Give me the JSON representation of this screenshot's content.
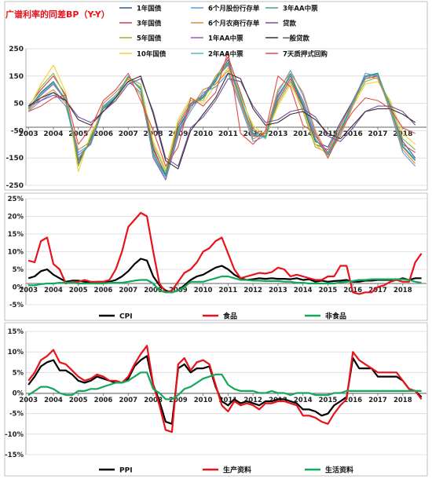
{
  "chart_data": [
    {
      "type": "line",
      "title": "广谱利率的同差BP（Y-Y）",
      "title_color": "#e8131a",
      "x_tick_labels": [
        "2003",
        "2004",
        "2005",
        "2006",
        "2007",
        "2008",
        "2009",
        "2010",
        "2011",
        "2012",
        "2013",
        "2014",
        "2015",
        "2016",
        "2017",
        "2018"
      ],
      "y_tick_labels": [
        "250",
        "150",
        "50",
        "-50",
        "-150",
        "-250"
      ],
      "ylim": [
        -250,
        250
      ],
      "x": [
        2003.0,
        2003.5,
        2004.0,
        2004.5,
        2005.0,
        2005.5,
        2006.0,
        2006.5,
        2007.0,
        2007.5,
        2008.0,
        2008.5,
        2009.0,
        2009.5,
        2010.0,
        2010.5,
        2011.0,
        2011.5,
        2012.0,
        2012.5,
        2013.0,
        2013.5,
        2014.0,
        2014.5,
        2015.0,
        2015.5,
        2016.0,
        2016.5,
        2017.0,
        2017.5,
        2018.0,
        2018.5
      ],
      "legend_position": "top",
      "series": [
        {
          "name": "1年国债",
          "color": "#2e5e8a",
          "values": [
            30,
            90,
            130,
            60,
            -170,
            -80,
            40,
            70,
            150,
            100,
            -120,
            -210,
            -40,
            40,
            70,
            130,
            210,
            60,
            -60,
            -60,
            70,
            150,
            40,
            -90,
            -110,
            -20,
            60,
            150,
            160,
            30,
            -90,
            -150
          ]
        },
        {
          "name": "3年国债",
          "color": "#c9414b",
          "values": [
            40,
            100,
            150,
            80,
            -160,
            -90,
            30,
            60,
            140,
            110,
            -110,
            -220,
            -30,
            50,
            80,
            140,
            220,
            90,
            -50,
            -70,
            60,
            140,
            30,
            -100,
            -120,
            -30,
            60,
            140,
            150,
            40,
            -100,
            -130
          ]
        },
        {
          "name": "5年国债",
          "color": "#8fb24a",
          "values": [
            35,
            110,
            160,
            70,
            -180,
            -70,
            30,
            70,
            145,
            120,
            -100,
            -200,
            -20,
            60,
            60,
            150,
            200,
            80,
            -40,
            -80,
            50,
            130,
            20,
            -110,
            -130,
            -40,
            50,
            130,
            145,
            50,
            -80,
            -120
          ]
        },
        {
          "name": "10年国债",
          "color": "#f2d230",
          "values": [
            30,
            120,
            190,
            90,
            -200,
            -60,
            20,
            60,
            140,
            110,
            -90,
            -190,
            -10,
            70,
            50,
            120,
            180,
            70,
            -30,
            -70,
            40,
            120,
            30,
            -100,
            -140,
            -50,
            40,
            120,
            130,
            60,
            -60,
            -100
          ]
        },
        {
          "name": "6个月股份行存单",
          "color": "#5b9bd5",
          "values": [
            20,
            60,
            90,
            40,
            -130,
            -100,
            40,
            80,
            130,
            90,
            -140,
            -230,
            -60,
            20,
            90,
            110,
            160,
            40,
            -90,
            -70,
            90,
            170,
            80,
            -60,
            -150,
            -60,
            50,
            160,
            150,
            20,
            -130,
            -180
          ]
        },
        {
          "name": "6个月农商行存单",
          "color": "#d68b3a",
          "values": [
            25,
            70,
            100,
            50,
            -120,
            -90,
            50,
            90,
            140,
            80,
            -130,
            -220,
            -50,
            30,
            100,
            120,
            170,
            50,
            -80,
            -60,
            100,
            160,
            90,
            -50,
            -140,
            -70,
            40,
            150,
            140,
            30,
            -120,
            -170
          ]
        },
        {
          "name": "1年AA中票",
          "color": "#9b59b6",
          "values": [
            30,
            80,
            120,
            60,
            -140,
            -100,
            30,
            70,
            150,
            100,
            -150,
            -230,
            -70,
            40,
            80,
            140,
            190,
            60,
            -70,
            -70,
            80,
            150,
            60,
            -70,
            -130,
            -50,
            60,
            150,
            150,
            40,
            -110,
            -160
          ]
        },
        {
          "name": "2年AA中票",
          "color": "#4bbcd6",
          "values": [
            30,
            85,
            125,
            65,
            -150,
            -95,
            35,
            75,
            150,
            105,
            -140,
            -220,
            -60,
            45,
            75,
            135,
            195,
            65,
            -65,
            -75,
            70,
            155,
            50,
            -80,
            -135,
            -45,
            55,
            145,
            155,
            35,
            -105,
            -155
          ]
        },
        {
          "name": "3年AA中票",
          "color": "#3aa87f",
          "values": [
            32,
            88,
            128,
            62,
            -155,
            -92,
            32,
            72,
            148,
            102,
            -135,
            -215,
            -55,
            48,
            72,
            138,
            198,
            68,
            -62,
            -72,
            72,
            158,
            48,
            -82,
            -138,
            -48,
            52,
            148,
            158,
            38,
            -108,
            -158
          ]
        },
        {
          "name": "贷款",
          "color": "#7a4a9e",
          "values": [
            40,
            60,
            80,
            60,
            0,
            -20,
            20,
            60,
            120,
            140,
            20,
            -150,
            -180,
            -40,
            0,
            60,
            140,
            130,
            40,
            -20,
            -10,
            20,
            30,
            0,
            -70,
            -90,
            -40,
            20,
            40,
            40,
            20,
            -30
          ]
        },
        {
          "name": "一般贷款",
          "color": "#333333",
          "values": [
            40,
            70,
            90,
            60,
            -10,
            -30,
            20,
            70,
            130,
            150,
            10,
            -160,
            -190,
            -50,
            10,
            70,
            160,
            140,
            30,
            -30,
            -20,
            10,
            20,
            -10,
            -60,
            -80,
            -30,
            20,
            30,
            30,
            10,
            -20
          ]
        },
        {
          "name": "7天质押式回购",
          "color": "#e04b4b",
          "values": [
            20,
            40,
            70,
            80,
            -100,
            -40,
            60,
            100,
            160,
            60,
            -50,
            -180,
            -110,
            70,
            40,
            90,
            240,
            -60,
            -100,
            -50,
            150,
            110,
            -30,
            -60,
            -150,
            -50,
            20,
            70,
            60,
            30,
            -40,
            -60
          ]
        }
      ]
    },
    {
      "type": "line",
      "x_tick_labels": [
        "2003",
        "2004",
        "2005",
        "2006",
        "2007",
        "2008",
        "2009",
        "2010",
        "2011",
        "2012",
        "2013",
        "2014",
        "2015",
        "2016",
        "2017",
        "2018"
      ],
      "y_tick_labels": [
        "25%",
        "20%",
        "15%",
        "10%",
        "5%",
        "0%",
        "-5%"
      ],
      "ylim": [
        -5,
        25
      ],
      "x": [
        2003.0,
        2003.25,
        2003.5,
        2003.75,
        2004.0,
        2004.25,
        2004.5,
        2004.75,
        2005.0,
        2005.25,
        2005.5,
        2005.75,
        2006.0,
        2006.25,
        2006.5,
        2006.75,
        2007.0,
        2007.25,
        2007.5,
        2007.75,
        2008.0,
        2008.25,
        2008.5,
        2008.75,
        2009.0,
        2009.25,
        2009.5,
        2009.75,
        2010.0,
        2010.25,
        2010.5,
        2010.75,
        2011.0,
        2011.25,
        2011.5,
        2011.75,
        2012.0,
        2012.25,
        2012.5,
        2012.75,
        2013.0,
        2013.25,
        2013.5,
        2013.75,
        2014.0,
        2014.25,
        2014.5,
        2014.75,
        2015.0,
        2015.25,
        2015.5,
        2015.75,
        2016.0,
        2016.25,
        2016.5,
        2016.75,
        2017.0,
        2017.25,
        2017.5,
        2017.75,
        2018.0,
        2018.25,
        2018.5,
        2018.75
      ],
      "legend_position": "bottom",
      "series": [
        {
          "name": "CPI",
          "color": "#000000",
          "values": [
            2.5,
            3,
            4.5,
            5,
            3.5,
            2.5,
            1.5,
            1.8,
            1.8,
            1.5,
            1.2,
            1.5,
            1.5,
            1.5,
            2,
            3,
            4.5,
            6.5,
            8,
            7.5,
            3,
            0.5,
            -1,
            -1.5,
            -1,
            0.5,
            2,
            3,
            3.5,
            4.5,
            5.5,
            6,
            5,
            3.5,
            2.5,
            2,
            2.2,
            2.5,
            2.3,
            2.5,
            2.3,
            2.3,
            2.2,
            2.5,
            2,
            2.2,
            1.5,
            1.8,
            1.5,
            1.7,
            1.8,
            2,
            1.5,
            1.5,
            1.8,
            1.8,
            2,
            2,
            2,
            2,
            2.5,
            2,
            2.5,
            2.5
          ]
        },
        {
          "name": "食品",
          "color": "#e8131a",
          "values": [
            7.5,
            7,
            13,
            14,
            6.5,
            5,
            1,
            1.5,
            1.5,
            2,
            1.5,
            1.5,
            1.5,
            2,
            5,
            10,
            17,
            19,
            21,
            20,
            10,
            1,
            -1.5,
            -1,
            1.5,
            4,
            5,
            7,
            10,
            11,
            13,
            14,
            9.5,
            5,
            2.5,
            3,
            3.5,
            4,
            3.8,
            4.2,
            5.5,
            5,
            3,
            3.5,
            3,
            2.5,
            2,
            2,
            3,
            3,
            6,
            6,
            -1.5,
            -2,
            -1.5,
            -1.5,
            0,
            0.5,
            1.5,
            2,
            1.5,
            1.5,
            7,
            9.5
          ]
        },
        {
          "name": "非食品",
          "color": "#14a85b",
          "values": [
            0.5,
            0.5,
            0.8,
            1,
            1,
            1.2,
            1.2,
            1.3,
            1,
            1,
            1,
            1,
            1,
            1.2,
            1.2,
            1.2,
            1.5,
            1.8,
            2,
            2,
            1,
            -1,
            -1.5,
            -1.5,
            -1,
            0,
            1.5,
            1.5,
            1.5,
            2,
            2.5,
            3,
            3,
            2.5,
            2,
            2,
            1.8,
            1.8,
            1.7,
            1.7,
            1.7,
            1.5,
            1.5,
            1.2,
            1.2,
            1,
            1,
            1,
            1,
            1,
            1.3,
            1.5,
            1.7,
            2,
            2,
            2.2,
            2.2,
            2.2,
            2.2,
            2.2,
            2.2,
            2,
            1.5,
            1.2
          ]
        }
      ]
    },
    {
      "type": "line",
      "x_tick_labels": [
        "2003",
        "2004",
        "2005",
        "2006",
        "2007",
        "2008",
        "2009",
        "2010",
        "2011",
        "2012",
        "2013",
        "2014",
        "2015",
        "2016",
        "2017",
        "2018"
      ],
      "y_tick_labels": [
        "15%",
        "10%",
        "5%",
        "0%",
        "-5%",
        "-10%",
        "-15%"
      ],
      "ylim": [
        -15,
        15
      ],
      "x": [
        2003.0,
        2003.25,
        2003.5,
        2003.75,
        2004.0,
        2004.25,
        2004.5,
        2004.75,
        2005.0,
        2005.25,
        2005.5,
        2005.75,
        2006.0,
        2006.25,
        2006.5,
        2006.75,
        2007.0,
        2007.25,
        2007.5,
        2007.75,
        2008.0,
        2008.25,
        2008.5,
        2008.75,
        2009.0,
        2009.25,
        2009.5,
        2009.75,
        2010.0,
        2010.25,
        2010.5,
        2010.75,
        2011.0,
        2011.25,
        2011.5,
        2011.75,
        2012.0,
        2012.25,
        2012.5,
        2012.75,
        2013.0,
        2013.25,
        2013.5,
        2013.75,
        2014.0,
        2014.25,
        2014.5,
        2014.75,
        2015.0,
        2015.25,
        2015.5,
        2015.75,
        2016.0,
        2016.25,
        2016.5,
        2016.75,
        2017.0,
        2017.25,
        2017.5,
        2017.75,
        2018.0,
        2018.25,
        2018.5,
        2018.75
      ],
      "legend_position": "bottom",
      "series": [
        {
          "name": "PPI",
          "color": "#000000",
          "values": [
            2,
            4,
            6.5,
            7.5,
            8,
            5.5,
            5.5,
            4.5,
            3,
            2.5,
            3,
            4,
            3.5,
            3,
            2.5,
            2.5,
            3.5,
            6.5,
            8,
            9,
            2,
            -2,
            -7,
            -7.5,
            6,
            7,
            5,
            6,
            6,
            6.5,
            1.5,
            -2,
            -3,
            -1.5,
            -2.5,
            -2,
            -2.5,
            -3,
            -2,
            -2,
            -1.5,
            -1.5,
            -2,
            -2.5,
            -4,
            -4,
            -4.5,
            -5.5,
            -5,
            -3,
            -2,
            -1,
            8.5,
            6,
            6,
            6,
            4,
            4,
            4,
            4,
            3,
            1,
            0.5,
            -1
          ]
        },
        {
          "name": "生产资料",
          "color": "#e8131a",
          "values": [
            3,
            5,
            8,
            9,
            10.5,
            7.5,
            7,
            5.5,
            4,
            3,
            3.5,
            4.5,
            4,
            3,
            3,
            2.5,
            4,
            7,
            9.5,
            11.5,
            2,
            -3,
            -9,
            -9.5,
            7,
            8.5,
            5.5,
            7.5,
            8,
            7,
            2,
            -3,
            -4.5,
            -2,
            -3,
            -2.5,
            -3,
            -4,
            -2.5,
            -2.5,
            -2,
            -2,
            -2.5,
            -3,
            -5.5,
            -5.5,
            -6,
            -7,
            -7.5,
            -5,
            -3,
            -1.5,
            10,
            8,
            7,
            6,
            5,
            5,
            5,
            5,
            3,
            1,
            0.5,
            -1.5
          ]
        },
        {
          "name": "生活资料",
          "color": "#14a85b",
          "values": [
            -0.5,
            0.5,
            1.5,
            1.5,
            1,
            0,
            -0.5,
            -0.5,
            0.5,
            0.5,
            1,
            1,
            1.5,
            2,
            2.5,
            2.5,
            3,
            4,
            5,
            5,
            1,
            0,
            -1.5,
            -1.5,
            -0.5,
            1,
            1.5,
            2.5,
            3.5,
            4,
            4.5,
            4.5,
            2,
            1,
            0.5,
            0.5,
            0.5,
            0,
            0,
            0.5,
            0,
            0,
            -0.5,
            0,
            0,
            0,
            -0.5,
            -0.5,
            -0.5,
            0,
            0,
            0.5,
            0.5,
            0.5,
            0.5,
            0.5,
            0.5,
            0.5,
            0.5,
            0.5,
            0.5,
            0.5,
            0.5,
            0.5
          ]
        }
      ]
    }
  ]
}
